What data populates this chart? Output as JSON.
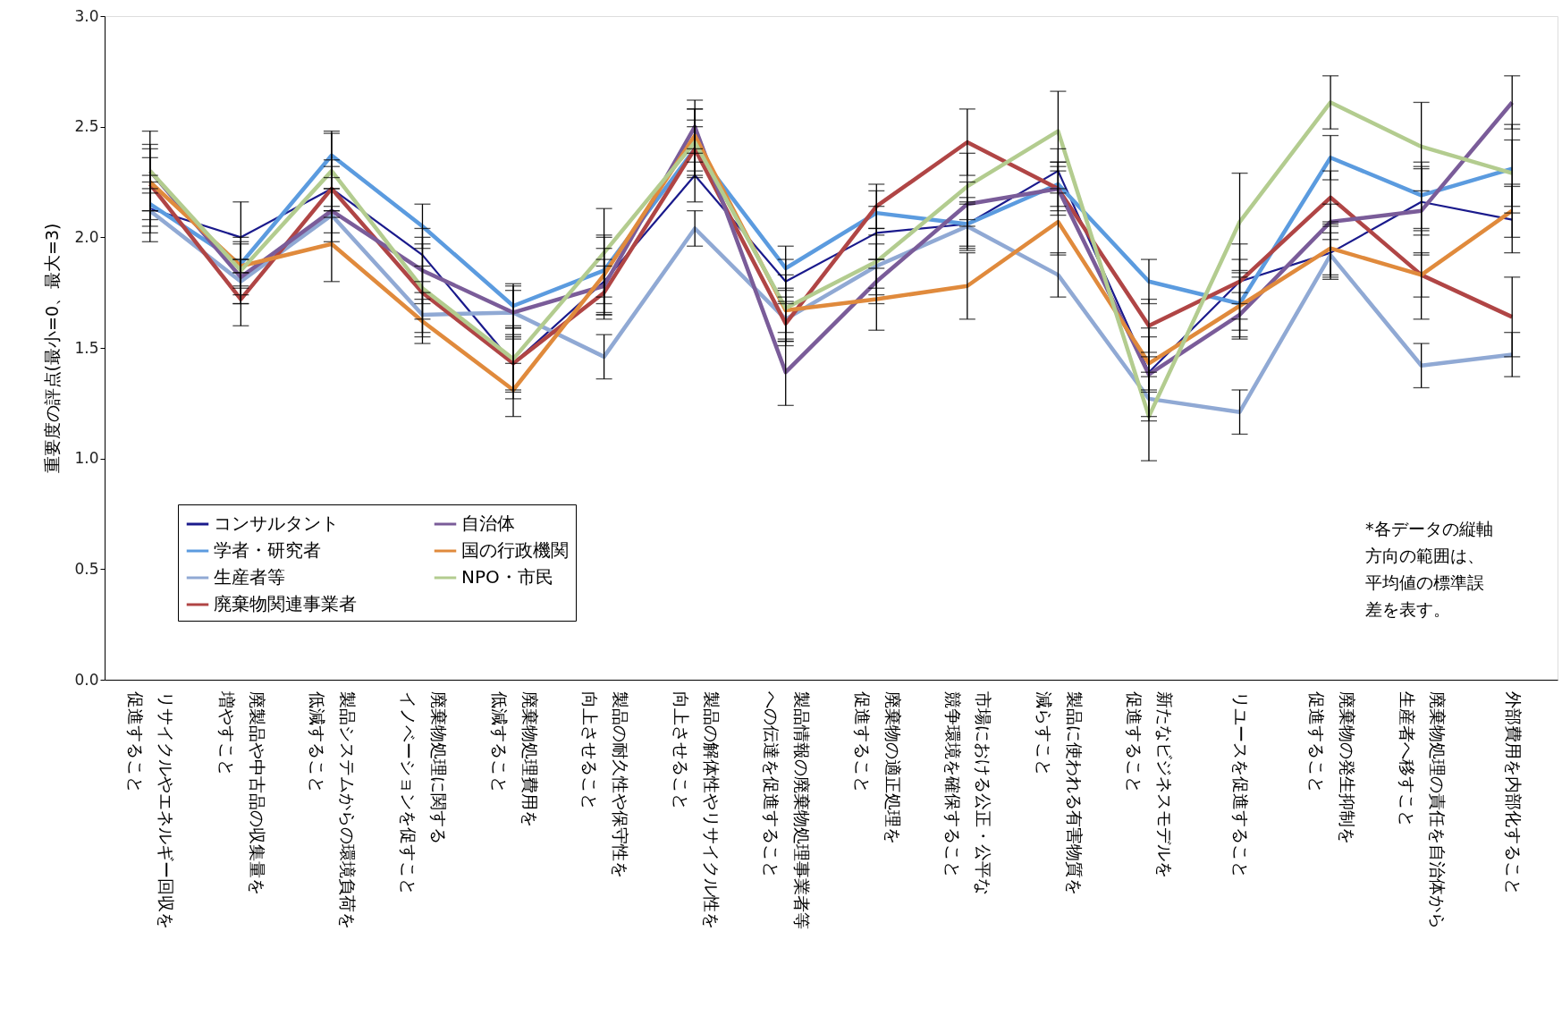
{
  "chart_data": {
    "type": "line",
    "ylabel": "重要度の評点(最小=0、最大=3)",
    "categories": [
      "リサイクルやエネルギー回収を促進すること",
      "廃製品や中古品の収集量を増やすこと",
      "製品システムからの環境負荷を低減すること",
      "廃棄物処理に関するイノベーションを促すこと",
      "廃棄物処理費用を低減すること",
      "製品の耐久性や保守性を向上させること",
      "製品の解体性やリサイクル性を向上させること",
      "製品情報の廃棄物処理事業者等への伝達を促進すること",
      "廃棄物の適正処理を促進すること",
      "市場における公正・公平な競争環境を確保すること",
      "製品に使われる有害物質を減らすこと",
      "新たなビジネスモデルを促進すること",
      "リユースを促進すること",
      "廃棄物の発生抑制を促進すること",
      "廃棄物処理の責任を自治体から生産者へ移すこと",
      "外部費用を内部化すること"
    ],
    "series": [
      {
        "name": "コンサルタント",
        "color": "#1a1a8c",
        "values": [
          2.13,
          2.0,
          2.22,
          1.92,
          1.43,
          1.8,
          2.28,
          1.8,
          2.02,
          2.06,
          2.3,
          1.39,
          1.8,
          1.93,
          2.16,
          2.08
        ],
        "errors": [
          0.15,
          0.16,
          0.13,
          0.12,
          0.12,
          0.15,
          0.12,
          0.1,
          0.12,
          0.12,
          0.1,
          0.2,
          0.17,
          0.12,
          0.15,
          0.15
        ]
      },
      {
        "name": "学者・研究者",
        "color": "#5b9bdf",
        "values": [
          2.15,
          1.88,
          2.37,
          2.05,
          1.69,
          1.85,
          2.4,
          1.86,
          2.11,
          2.06,
          2.24,
          1.8,
          1.7,
          2.36,
          2.19,
          2.31
        ],
        "errors": [
          0.1,
          0.1,
          0.1,
          0.1,
          0.1,
          0.15,
          0.1,
          0.1,
          0.1,
          0.1,
          0.1,
          0.1,
          0.12,
          0.1,
          0.15,
          0.2
        ]
      },
      {
        "name": "生産者等",
        "color": "#90a9d4",
        "values": [
          2.12,
          1.8,
          2.1,
          1.65,
          1.66,
          1.46,
          2.04,
          1.63,
          1.87,
          2.05,
          1.83,
          1.27,
          1.21,
          1.92,
          1.42,
          1.47
        ],
        "errors": [
          0.1,
          0.1,
          0.12,
          0.1,
          0.12,
          0.1,
          0.08,
          0.1,
          0.1,
          0.1,
          0.1,
          0.1,
          0.1,
          0.1,
          0.1,
          0.1
        ]
      },
      {
        "name": "廃棄物関連事業者",
        "color": "#b04545",
        "values": [
          2.24,
          1.72,
          2.22,
          1.75,
          1.43,
          1.75,
          2.4,
          1.61,
          2.14,
          2.43,
          2.22,
          1.6,
          1.8,
          2.18,
          1.83,
          1.64
        ],
        "errors": [
          0.12,
          0.12,
          0.1,
          0.12,
          0.16,
          0.12,
          0.13,
          0.1,
          0.1,
          0.15,
          0.1,
          0.12,
          0.1,
          0.12,
          0.1,
          0.18
        ]
      },
      {
        "name": "自治体",
        "color": "#7a5c99",
        "values": [
          2.3,
          1.82,
          2.12,
          1.85,
          1.66,
          1.78,
          2.5,
          1.39,
          1.8,
          2.15,
          2.22,
          1.38,
          1.65,
          2.07,
          2.12,
          2.61
        ],
        "errors": [
          0.1,
          0.08,
          0.1,
          0.15,
          0.1,
          0.12,
          0.12,
          0.15,
          0.1,
          0.1,
          0.12,
          0.08,
          0.1,
          0.08,
          0.2,
          0.12
        ]
      },
      {
        "name": "国の行政機関",
        "color": "#e08a3c",
        "values": [
          2.25,
          1.87,
          1.97,
          1.62,
          1.31,
          1.83,
          2.46,
          1.67,
          1.72,
          1.78,
          2.07,
          1.43,
          1.69,
          1.95,
          1.83,
          2.12
        ],
        "errors": [
          0.17,
          0.1,
          0.17,
          0.1,
          0.12,
          0.18,
          0.12,
          0.1,
          0.14,
          0.15,
          0.15,
          0.12,
          0.15,
          0.12,
          0.2,
          0.12
        ]
      },
      {
        "name": "NPO・市民",
        "color": "#b3cc8f",
        "values": [
          2.3,
          1.85,
          2.3,
          1.77,
          1.45,
          1.93,
          2.43,
          1.68,
          1.89,
          2.23,
          2.48,
          1.19,
          2.07,
          2.61,
          2.41,
          2.29
        ],
        "errors": [
          0.18,
          0.15,
          0.18,
          0.2,
          0.15,
          0.2,
          0.15,
          0.15,
          0.15,
          0.15,
          0.18,
          0.2,
          0.22,
          0.12,
          0.2,
          0.15
        ]
      }
    ],
    "ylim": [
      0,
      3
    ],
    "yticks": [
      {
        "value": 0,
        "label": "0.0"
      },
      {
        "value": 0.5,
        "label": "0.5"
      },
      {
        "value": 1,
        "label": "1.0"
      },
      {
        "value": 1.5,
        "label": "1.5"
      },
      {
        "value": 2,
        "label": "2.0"
      },
      {
        "value": 2.5,
        "label": "2.5"
      },
      {
        "value": 3,
        "label": "3.0"
      }
    ],
    "grid": false,
    "legend": "bottom left",
    "marker": "none",
    "line_style": "solid",
    "annotations": [
      "*各データの縦軸方向の範囲は、平均値の標準誤差を表す。"
    ]
  }
}
